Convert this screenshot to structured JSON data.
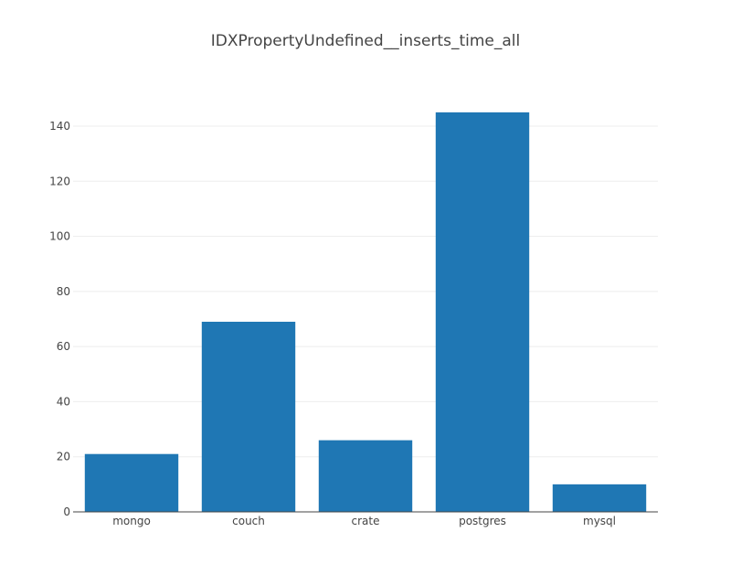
{
  "chart_data": {
    "type": "bar",
    "title": "IDXPropertyUndefined__inserts_time_all",
    "xlabel": "",
    "ylabel": "",
    "categories": [
      "mongo",
      "couch",
      "crate",
      "postgres",
      "mysql"
    ],
    "values": [
      21,
      69,
      26,
      145,
      10
    ],
    "ylim": [
      0,
      152.6
    ],
    "yticks": [
      0,
      20,
      40,
      60,
      80,
      100,
      120,
      140
    ],
    "grid": true,
    "bar_color": "#1f77b4"
  }
}
